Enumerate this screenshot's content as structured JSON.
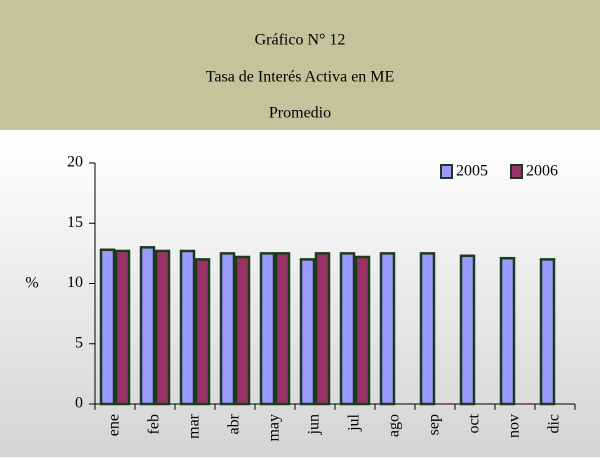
{
  "chart_data": {
    "type": "bar",
    "title": "Gráfico N° 12",
    "subtitle": "Tasa de Interés Activa en ME",
    "caption": "Promedio",
    "y_label": "%",
    "categories": [
      "ene",
      "feb",
      "mar",
      "abr",
      "may",
      "jun",
      "jul",
      "ago",
      "sep",
      "oct",
      "nov",
      "dic"
    ],
    "series": [
      {
        "name": "2005",
        "color": "#9999ff",
        "values": [
          12.8,
          13,
          12.7,
          12.5,
          12.5,
          12,
          12.5,
          12.5,
          12.5,
          12.3,
          12.1,
          12
        ]
      },
      {
        "name": "2006",
        "color": "#993366",
        "values": [
          12.7,
          12.7,
          12,
          12.2,
          12.5,
          12.5,
          12.2,
          null,
          null,
          null,
          null,
          null
        ]
      }
    ],
    "ylim": [
      0,
      20
    ],
    "yticks": [
      0,
      5,
      10,
      15,
      20
    ],
    "legend": "top-right"
  }
}
